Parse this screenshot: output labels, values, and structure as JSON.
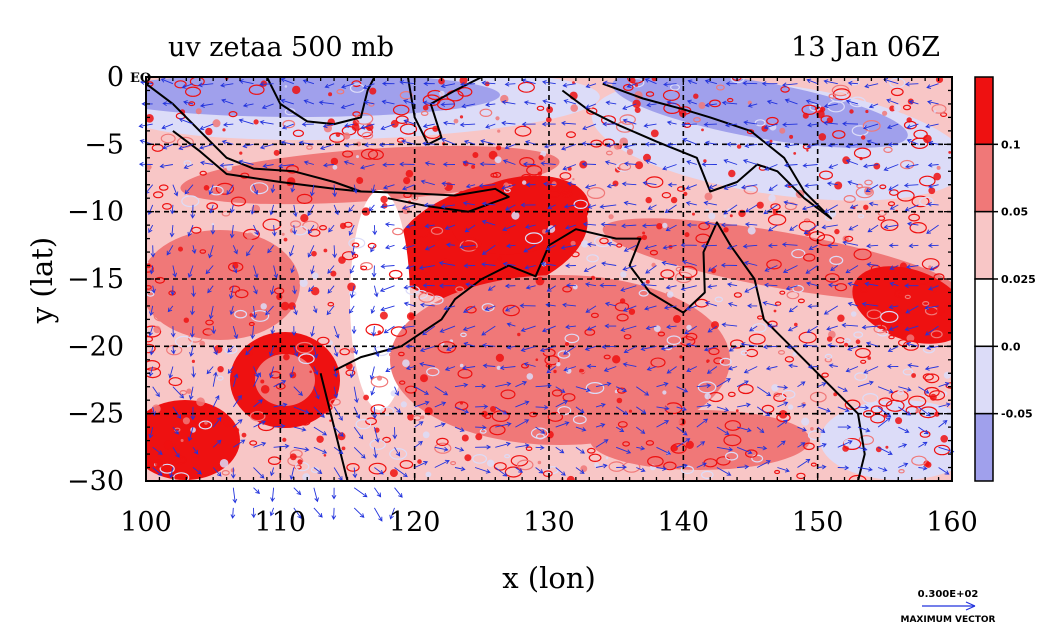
{
  "chart_data": {
    "type": "heatmap",
    "title": "uv zetaa 500 mb",
    "time_label": "13 Jan 06Z",
    "xlabel": "x (lon)",
    "ylabel": "y (lat)",
    "x_ticks": [
      100,
      110,
      120,
      130,
      140,
      150,
      160
    ],
    "y_ticks": [
      0,
      -5,
      -10,
      -15,
      -20,
      -25,
      -30
    ],
    "x_tick_labels": [
      "100",
      "110",
      "120",
      "130",
      "140",
      "150",
      "160"
    ],
    "y_tick_labels": [
      "0",
      "−5",
      "−10",
      "−15",
      "−20",
      "−25",
      "−30"
    ],
    "equator_label": "EQ",
    "xlim": [
      100,
      160
    ],
    "ylim": [
      -30,
      0
    ],
    "grid": true,
    "colorbar": {
      "labels": [
        "0.1",
        "0.05",
        "0.025",
        "0.0",
        "-0.05"
      ],
      "bands": [
        {
          "color": "#ee1111"
        },
        {
          "color": "#f07878"
        },
        {
          "color": "#f8c6c6"
        },
        {
          "color": "#ffffff"
        },
        {
          "color": "#dcdcf8"
        },
        {
          "color": "#a0a0ec"
        }
      ]
    },
    "vector_key": {
      "value_label": "0.300E+02",
      "caption": "MAXIMUM VECTOR"
    },
    "colors": {
      "strong_pos": "#ee1111",
      "mid_pos": "#f07878",
      "weak_pos": "#f8c6c6",
      "neutral": "#ffffff",
      "weak_neg": "#dcdcf8",
      "strong_neg": "#a0a0ec",
      "vectors": "#2233dd",
      "coast": "#000000"
    }
  }
}
